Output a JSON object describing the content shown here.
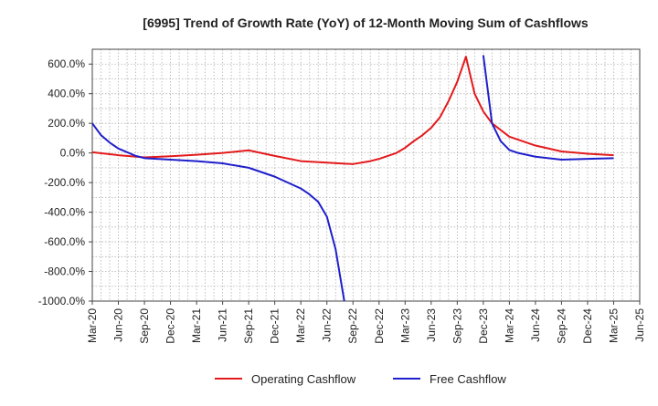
{
  "chart_data": {
    "type": "line",
    "title": "[6995]  Trend of Growth Rate (YoY) of 12-Month Moving Sum of Cashflows",
    "xlabel": "",
    "ylabel": "",
    "ylim": [
      -1000,
      700
    ],
    "yticks": [
      -1000,
      -800,
      -600,
      -400,
      -200,
      0,
      200,
      400,
      600
    ],
    "ytick_labels": [
      "-1000.0%",
      "-800.0%",
      "-600.0%",
      "-400.0%",
      "-200.0%",
      "0.0%",
      "200.0%",
      "400.0%",
      "600.0%"
    ],
    "xtick_labels": [
      "Mar-20",
      "Jun-20",
      "Sep-20",
      "Dec-20",
      "Mar-21",
      "Jun-21",
      "Sep-21",
      "Dec-21",
      "Mar-22",
      "Jun-22",
      "Sep-22",
      "Dec-22",
      "Mar-23",
      "Jun-23",
      "Sep-23",
      "Dec-23",
      "Mar-24",
      "Jun-24",
      "Sep-24",
      "Dec-24",
      "Mar-25",
      "Jun-25"
    ],
    "grid": true,
    "legend_position": "bottom",
    "series": [
      {
        "name": "Operating Cashflow",
        "color": "#e31a1c",
        "x": [
          "Mar-20",
          "Jun-20",
          "Sep-20",
          "Dec-20",
          "Mar-21",
          "Jun-21",
          "Sep-21",
          "Dec-21",
          "Mar-22",
          "Jun-22",
          "Aug-22",
          "Sep-22",
          "Nov-22",
          "Dec-22",
          "Jan-23",
          "Feb-23",
          "Mar-23",
          "Apr-23",
          "May-23",
          "Jun-23",
          "Jul-23",
          "Aug-23",
          "Sep-23",
          "Oct-23",
          "Nov-23",
          "Dec-23",
          "Jan-24",
          "Mar-24",
          "Jun-24",
          "Sep-24",
          "Dec-24",
          "Mar-25"
        ],
        "values": [
          5,
          -15,
          -30,
          -22,
          -12,
          0,
          18,
          -20,
          -55,
          -65,
          -72,
          -75,
          -55,
          -40,
          -20,
          0,
          35,
          80,
          120,
          170,
          240,
          350,
          480,
          650,
          400,
          280,
          200,
          110,
          50,
          10,
          -5,
          -15
        ]
      },
      {
        "name": "Free Cashflow",
        "color": "#1f1fcc",
        "x": [
          "Mar-20",
          "Apr-20",
          "May-20",
          "Jun-20",
          "Jul-20",
          "Aug-20",
          "Sep-20",
          "Dec-20",
          "Mar-21",
          "Jun-21",
          "Sep-21",
          "Dec-21",
          "Mar-22",
          "Apr-22",
          "May-22",
          "Jun-22",
          "Jul-22",
          "Aug-22",
          "Aug-22",
          "Dec-23",
          "Jan-24",
          "Feb-24",
          "Mar-24",
          "Apr-24",
          "Jun-24",
          "Sep-24",
          "Dec-24",
          "Mar-25"
        ],
        "values": [
          200,
          120,
          70,
          30,
          5,
          -20,
          -35,
          -45,
          -55,
          -70,
          -100,
          -160,
          -240,
          -280,
          -330,
          -430,
          -650,
          -1000,
          null,
          660,
          200,
          80,
          20,
          0,
          -25,
          -45,
          -40,
          -35
        ]
      }
    ]
  }
}
